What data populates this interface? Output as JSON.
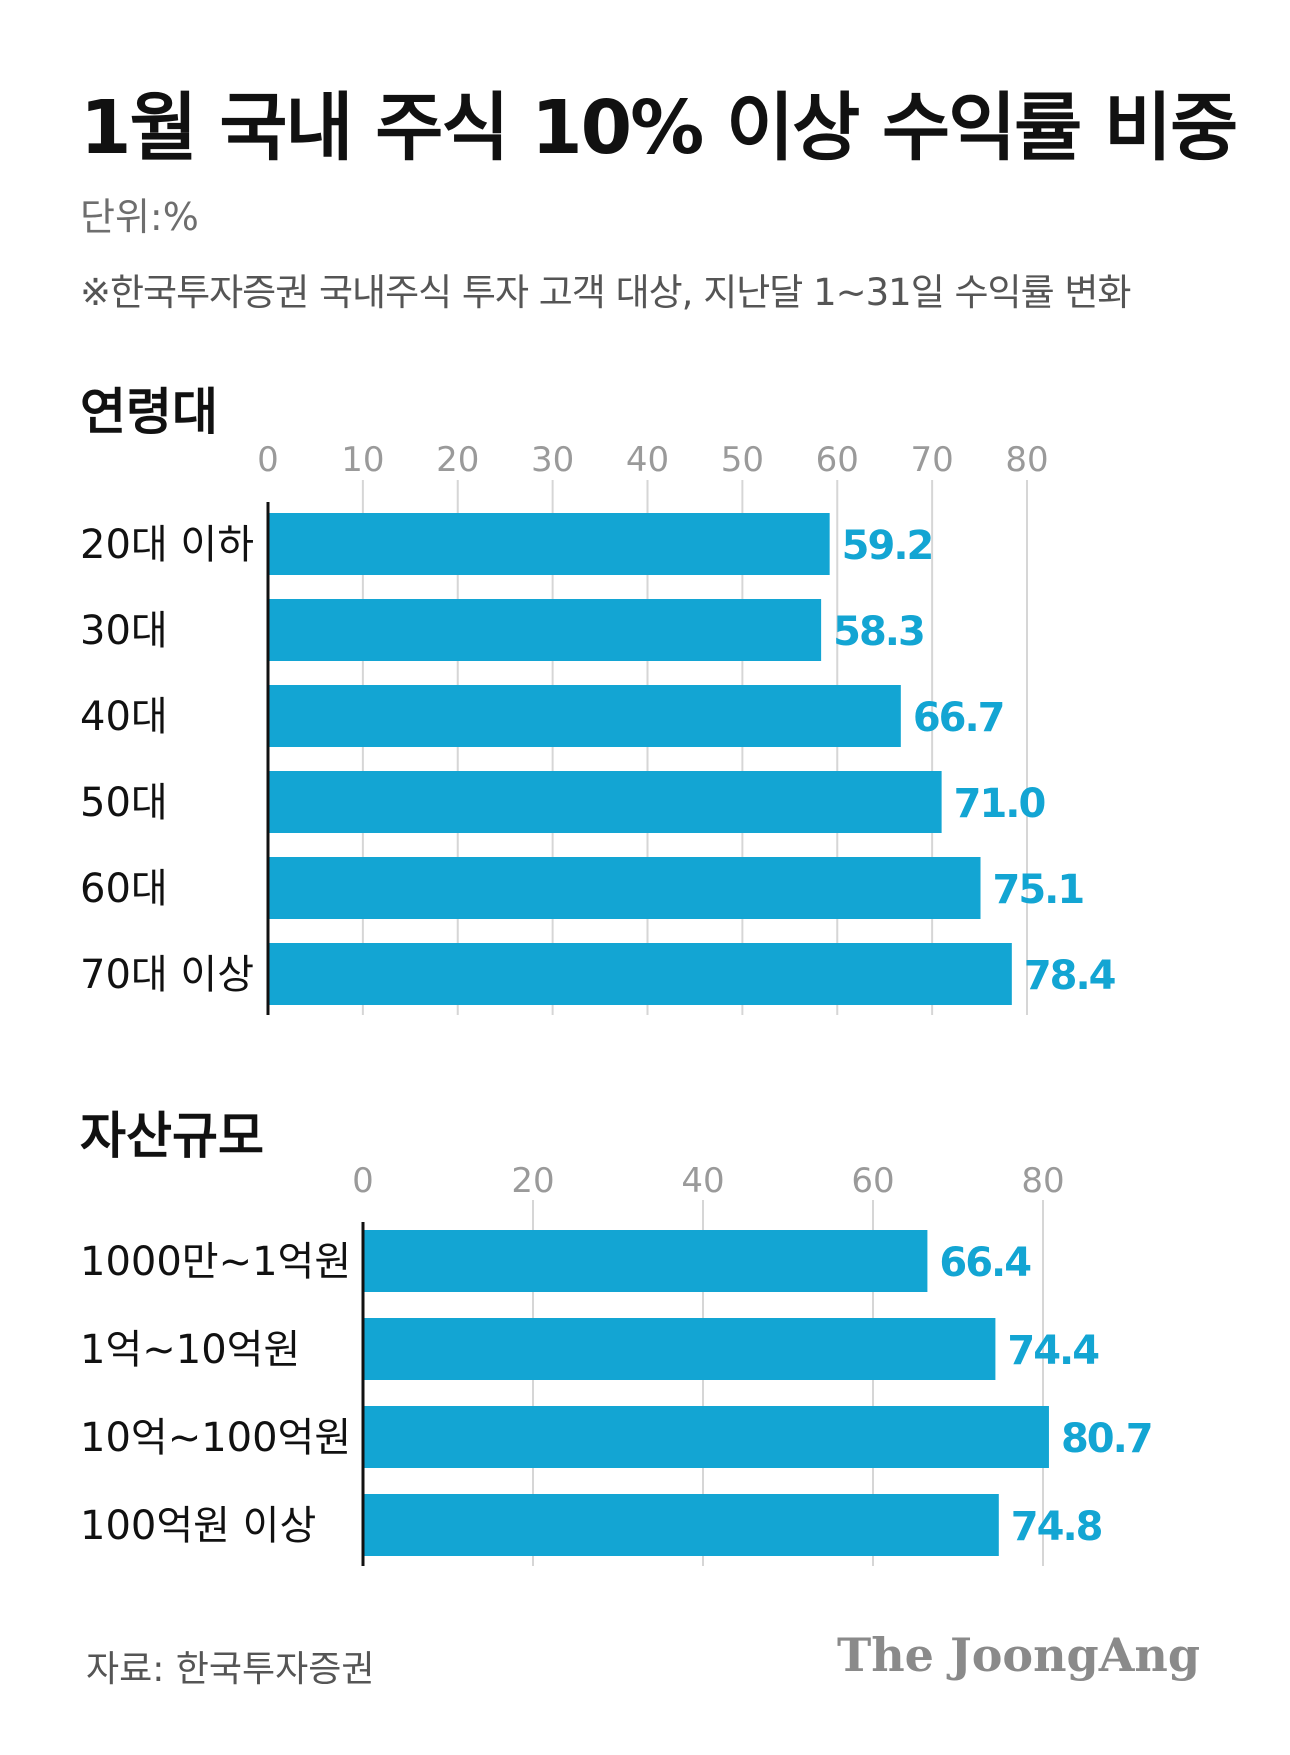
{
  "title": "1월 국내 주식 10% 이상 수익률 비중",
  "unit": "단위:%",
  "note": "※한국투자증권 국내주식 투자 고객 대상, 지난달 1~31일 수익률 변화",
  "bar_color": "#13A5D3",
  "label_color": "#13A5D3",
  "chart_data": [
    {
      "type": "bar",
      "orientation": "horizontal",
      "title": "연령대",
      "categories": [
        "20대 이하",
        "30대",
        "40대",
        "50대",
        "60대",
        "70대 이상"
      ],
      "values": [
        59.2,
        58.3,
        66.7,
        71.0,
        75.1,
        78.4
      ],
      "value_labels": [
        "59.2",
        "58.3",
        "66.7",
        "71.0",
        "75.1",
        "78.4"
      ],
      "xlim": [
        0,
        80
      ],
      "ticks": [
        0,
        10,
        20,
        30,
        40,
        50,
        60,
        70,
        80
      ],
      "grid": true
    },
    {
      "type": "bar",
      "orientation": "horizontal",
      "title": "자산규모",
      "categories": [
        "1000만~1억원",
        "1억~10억원",
        "10억~100억원",
        "100억원 이상"
      ],
      "values": [
        66.4,
        74.4,
        80.7,
        74.8
      ],
      "value_labels": [
        "66.4",
        "74.4",
        "80.7",
        "74.8"
      ],
      "xlim": [
        0,
        80
      ],
      "ticks": [
        0,
        20,
        40,
        60,
        80
      ],
      "grid": true
    }
  ],
  "footer": {
    "source": "자료: 한국투자증권",
    "brand": "The JoongAng"
  }
}
